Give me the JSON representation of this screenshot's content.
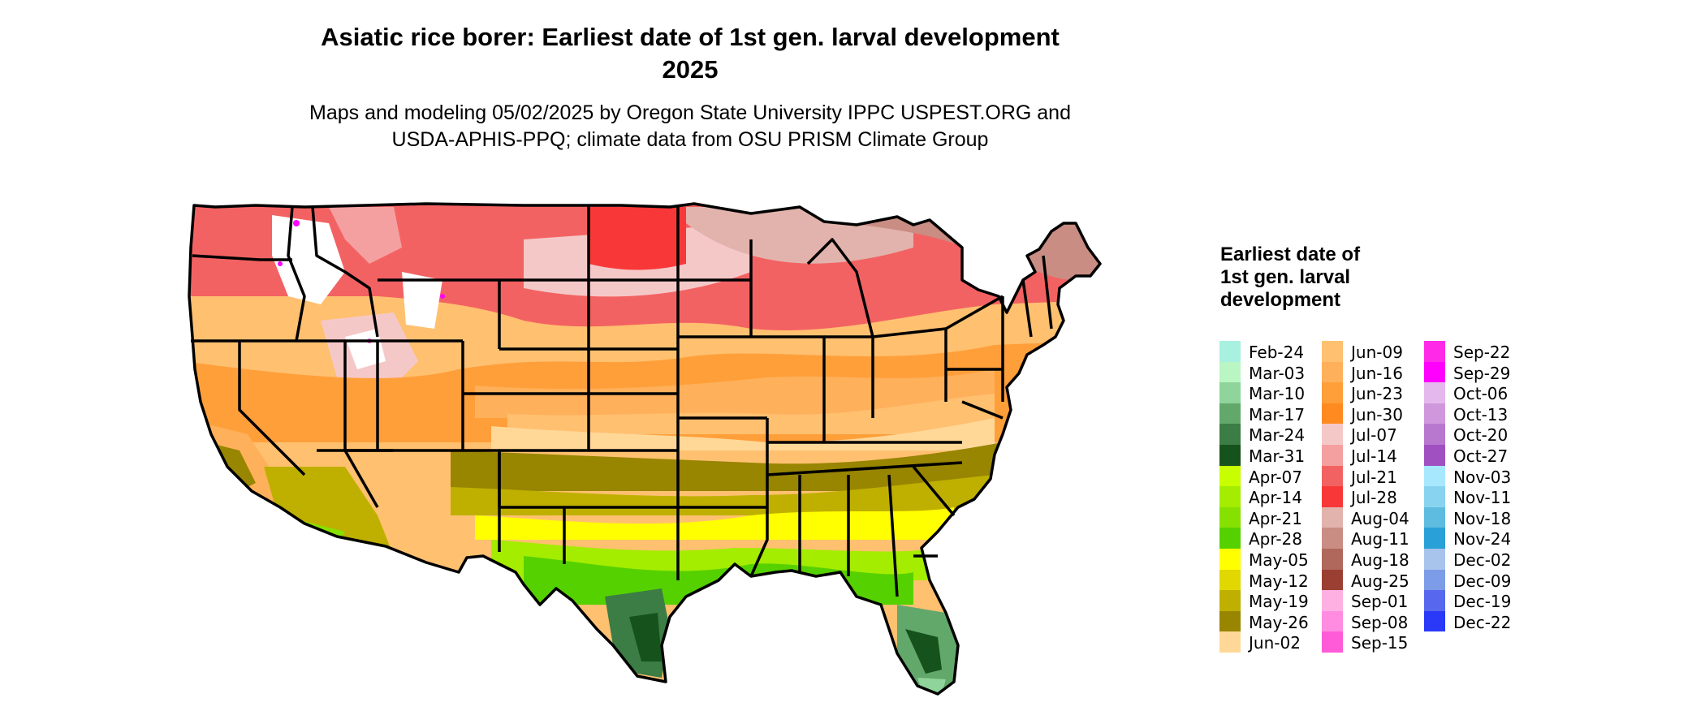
{
  "title": {
    "line1": "Asiatic rice borer: Earliest date of 1st gen. larval development",
    "line2": "2025"
  },
  "subtitle": {
    "line1": "Maps and modeling 05/02/2025 by Oregon State University IPPC USPEST.ORG and",
    "line2": "USDA-APHIS-PPQ; climate data from OSU PRISM Climate Group"
  },
  "legend": {
    "title": "Earliest date of 1st gen. larval development",
    "columns": [
      [
        {
          "label": "Feb-24",
          "color": "#a8f0e0"
        },
        {
          "label": "Mar-03",
          "color": "#b9f6c3"
        },
        {
          "label": "Mar-10",
          "color": "#8fd49a"
        },
        {
          "label": "Mar-17",
          "color": "#63a86b"
        },
        {
          "label": "Mar-24",
          "color": "#3b7d45"
        },
        {
          "label": "Mar-31",
          "color": "#16531c"
        },
        {
          "label": "Apr-07",
          "color": "#c8ff00"
        },
        {
          "label": "Apr-14",
          "color": "#a4ec00"
        },
        {
          "label": "Apr-21",
          "color": "#86e000"
        },
        {
          "label": "Apr-28",
          "color": "#56d100"
        },
        {
          "label": "May-05",
          "color": "#ffff00"
        },
        {
          "label": "May-12",
          "color": "#e0d800"
        },
        {
          "label": "May-19",
          "color": "#bfb000"
        },
        {
          "label": "May-26",
          "color": "#988500"
        },
        {
          "label": "Jun-02",
          "color": "#ffd898"
        }
      ],
      [
        {
          "label": "Jun-09",
          "color": "#ffc070"
        },
        {
          "label": "Jun-16",
          "color": "#ffb05a"
        },
        {
          "label": "Jun-23",
          "color": "#ff9f3a"
        },
        {
          "label": "Jun-30",
          "color": "#ff8a20"
        },
        {
          "label": "Jul-07",
          "color": "#f5c8c8"
        },
        {
          "label": "Jul-14",
          "color": "#f5a0a0"
        },
        {
          "label": "Jul-21",
          "color": "#f36262"
        },
        {
          "label": "Jul-28",
          "color": "#f83838"
        },
        {
          "label": "Aug-04",
          "color": "#e2b3ac"
        },
        {
          "label": "Aug-11",
          "color": "#c98d83"
        },
        {
          "label": "Aug-18",
          "color": "#b0675c"
        },
        {
          "label": "Aug-25",
          "color": "#9b3f33"
        },
        {
          "label": "Sep-01",
          "color": "#ffb0e2"
        },
        {
          "label": "Sep-08",
          "color": "#ff8ce0"
        },
        {
          "label": "Sep-15",
          "color": "#ff5ad8"
        }
      ],
      [
        {
          "label": "Sep-22",
          "color": "#ff2ae8"
        },
        {
          "label": "Sep-29",
          "color": "#ff00ff"
        },
        {
          "label": "Oct-06",
          "color": "#e4b8ec"
        },
        {
          "label": "Oct-13",
          "color": "#d098dc"
        },
        {
          "label": "Oct-20",
          "color": "#b878d0"
        },
        {
          "label": "Oct-27",
          "color": "#a050c0"
        },
        {
          "label": "Nov-03",
          "color": "#a8e8ff"
        },
        {
          "label": "Nov-11",
          "color": "#88d4f0"
        },
        {
          "label": "Nov-18",
          "color": "#5ebce0"
        },
        {
          "label": "Nov-24",
          "color": "#2aa0d8"
        },
        {
          "label": "Dec-02",
          "color": "#a8c4ec"
        },
        {
          "label": "Dec-09",
          "color": "#7c9ce8"
        },
        {
          "label": "Dec-19",
          "color": "#5868ee"
        },
        {
          "label": "Dec-22",
          "color": "#2a38f8"
        }
      ]
    ]
  }
}
